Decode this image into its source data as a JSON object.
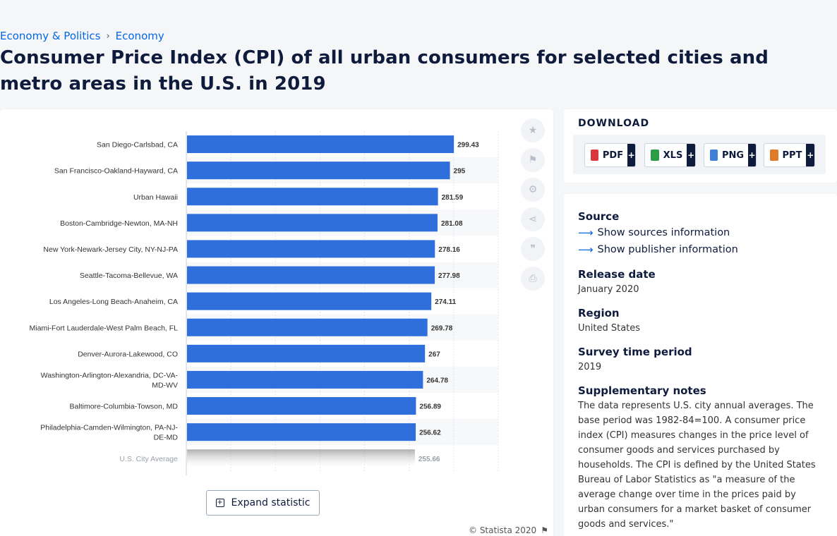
{
  "breadcrumb": {
    "items": [
      "Economy & Politics",
      "Economy"
    ],
    "separator": "›"
  },
  "page_title": "Consumer Price Index (CPI) of all urban consumers for selected cities and metro areas in the U.S. in 2019",
  "chart_data": {
    "type": "bar",
    "orientation": "horizontal",
    "categories": [
      "San Diego-Carlsbad, CA",
      "San Francisco-Oakland-Hayward, CA",
      "Urban Hawaii",
      "Boston-Cambridge-Newton, MA-NH",
      "New York-Newark-Jersey City, NY-NJ-PA",
      "Seattle-Tacoma-Bellevue, WA",
      "Los Angeles-Long Beach-Anaheim, CA",
      "Miami-Fort Lauderdale-West Palm Beach, FL",
      "Denver-Aurora-Lakewood, CO",
      "Washington-Arlington-Alexandria, DC-VA-MD-WV",
      "Baltimore-Columbia-Towson, MD",
      "Philadelphia-Camden-Wilmington, PA-NJ-DE-MD",
      "U.S. City Average"
    ],
    "category_lines": [
      [
        "San Diego-Carlsbad, CA"
      ],
      [
        "San Francisco-Oakland-Hayward, CA"
      ],
      [
        "Urban Hawaii"
      ],
      [
        "Boston-Cambridge-Newton, MA-NH"
      ],
      [
        "New York-Newark-Jersey City, NY-NJ-PA"
      ],
      [
        "Seattle-Tacoma-Bellevue, WA"
      ],
      [
        "Los Angeles-Long Beach-Anaheim, CA"
      ],
      [
        "Miami-Fort Lauderdale-West Palm Beach, FL"
      ],
      [
        "Denver-Aurora-Lakewood, CO"
      ],
      [
        "Washington-Arlington-Alexandria, DC-VA-",
        "MD-WV"
      ],
      [
        "Baltimore-Columbia-Towson, MD"
      ],
      [
        "Philadelphia-Camden-Wilmington, PA-NJ-",
        "DE-MD"
      ],
      [
        "U.S. City Average"
      ]
    ],
    "values": [
      299.43,
      295,
      281.59,
      281.08,
      278.16,
      277.98,
      274.11,
      269.78,
      267,
      264.78,
      256.89,
      256.62,
      255.66
    ],
    "value_labels": [
      "299.43",
      "295",
      "281.59",
      "281.08",
      "278.16",
      "277.98",
      "274.11",
      "269.78",
      "267",
      "264.78",
      "256.89",
      "256.62",
      "255.66"
    ],
    "xlim": [
      0,
      350
    ],
    "grid": true,
    "bar_color": "#2f6fdb",
    "faded_last_bar": true
  },
  "tools": [
    {
      "name": "favorite",
      "icon": "star-icon",
      "glyph": "★"
    },
    {
      "name": "notification",
      "icon": "bell-icon",
      "glyph": "🔔"
    },
    {
      "name": "settings",
      "icon": "gear-icon",
      "glyph": "⚙"
    },
    {
      "name": "share",
      "icon": "share-icon",
      "glyph": "⋖"
    },
    {
      "name": "cite",
      "icon": "quote-icon",
      "glyph": "❞"
    },
    {
      "name": "print",
      "icon": "print-icon",
      "glyph": "⎙"
    }
  ],
  "expand_label": "Expand statistic",
  "copyright": "© Statista 2020",
  "download": {
    "heading": "DOWNLOAD",
    "buttons": [
      {
        "label": "PDF",
        "icon_color": "#d9363e"
      },
      {
        "label": "XLS",
        "icon_color": "#2e9b47"
      },
      {
        "label": "PNG",
        "icon_color": "#3f7fd6"
      },
      {
        "label": "PPT",
        "icon_color": "#e07b2a"
      }
    ],
    "plus": "+"
  },
  "info": {
    "source_heading": "Source",
    "show_sources": "Show sources information",
    "show_publisher": "Show publisher information",
    "release_heading": "Release date",
    "release_value": "January 2020",
    "region_heading": "Region",
    "region_value": "United States",
    "survey_heading": "Survey time period",
    "survey_value": "2019",
    "notes_heading": "Supplementary notes",
    "notes_text": "The data represents U.S. city annual averages. The base period was 1982-84=100. A consumer price index (CPI) measures changes in the price level of consumer goods and services purchased by households. The CPI is defined by the United States Bureau of Labor Statistics as \"a measure of the average change over time in the prices paid by urban consumers for a market basket of consumer goods and services.\""
  }
}
